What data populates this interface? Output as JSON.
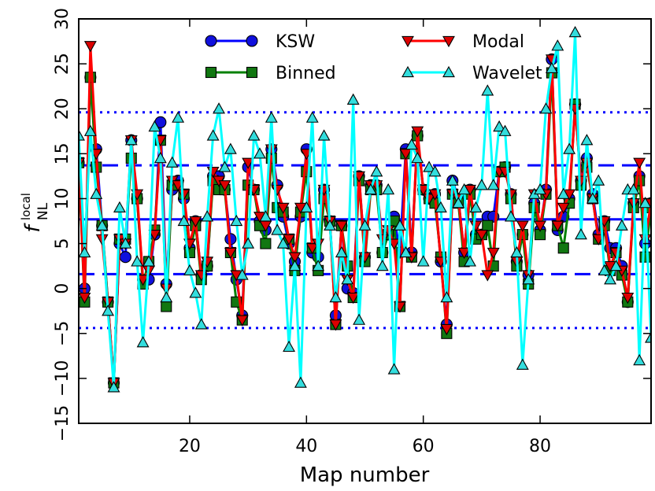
{
  "chart_data": {
    "type": "line",
    "title": "",
    "xlabel": "Map number",
    "ylabel": "f_NL^local",
    "ylabel_main": "f",
    "ylabel_sup": "local",
    "ylabel_sub": "NL",
    "xlim": [
      1,
      99
    ],
    "ylim": [
      -15,
      30
    ],
    "xticks": [
      20,
      40,
      60,
      80
    ],
    "yticks": [
      -15,
      -10,
      -5,
      0,
      5,
      10,
      15,
      20,
      25,
      30
    ],
    "ytick_labels": [
      "−15",
      "−10",
      "−5",
      "0",
      "5",
      "10",
      "15",
      "20",
      "25",
      "30"
    ],
    "legend_position": "top",
    "reference_lines": [
      {
        "name": "mean",
        "y": 7.7,
        "style": "solid",
        "color": "#0000ff"
      },
      {
        "name": "mean-plus-1sigma",
        "y": 13.7,
        "style": "dashed",
        "color": "#0000ff"
      },
      {
        "name": "mean-minus-1sigma",
        "y": 1.6,
        "style": "dashed",
        "color": "#0000ff"
      },
      {
        "name": "mean-plus-2sigma",
        "y": 19.6,
        "style": "dotted",
        "color": "#0000ff"
      },
      {
        "name": "mean-minus-2sigma",
        "y": -4.4,
        "style": "dotted",
        "color": "#0000ff"
      }
    ],
    "x": [
      1,
      2,
      3,
      4,
      5,
      6,
      7,
      8,
      9,
      10,
      11,
      12,
      13,
      14,
      15,
      16,
      17,
      18,
      19,
      20,
      21,
      22,
      23,
      24,
      25,
      26,
      27,
      28,
      29,
      30,
      31,
      32,
      33,
      34,
      35,
      36,
      37,
      38,
      39,
      40,
      41,
      42,
      43,
      44,
      45,
      46,
      47,
      48,
      49,
      50,
      51,
      52,
      53,
      54,
      55,
      56,
      57,
      58,
      59,
      60,
      61,
      62,
      63,
      64,
      65,
      66,
      67,
      68,
      69,
      70,
      71,
      72,
      73,
      74,
      75,
      76,
      77,
      78,
      79,
      80,
      81,
      82,
      83,
      84,
      85,
      86,
      87,
      88,
      89,
      90,
      91,
      92,
      93,
      94,
      95,
      96,
      97,
      98,
      99
    ],
    "series": [
      {
        "name": "KSW",
        "color": "#0000ff",
        "marker": "circle",
        "marker_color": "#1010dd",
        "values": [
          14,
          0,
          23.5,
          15.5,
          7,
          -1.5,
          -10.5,
          5,
          3.5,
          16.5,
          10,
          1,
          1,
          6,
          18.5,
          0.5,
          11,
          12,
          10,
          4.5,
          7.5,
          1.5,
          2.5,
          12.5,
          12.5,
          11,
          5.5,
          1,
          -3,
          13.5,
          11,
          7.5,
          6.5,
          15.5,
          11.5,
          8,
          5,
          3,
          8,
          15.5,
          4,
          3.5,
          11,
          7.5,
          -3,
          7,
          0,
          -0.5,
          12.5,
          3.5,
          11.5,
          11.5,
          4,
          6,
          8,
          4,
          15.5,
          4,
          17,
          11,
          10,
          10.5,
          3,
          -4,
          12,
          10,
          4,
          11,
          6,
          6,
          8,
          8,
          13,
          13.5,
          10.5,
          3,
          6,
          1.5,
          9.5,
          6.5,
          11,
          25.5,
          6.5,
          8,
          10,
          20.5,
          12,
          14.5,
          10.5,
          6,
          7.5,
          4.5,
          4.5,
          2.5,
          -1.5,
          9.5,
          12.5,
          5,
          9.5
        ]
      },
      {
        "name": "Binned",
        "color": "#008000",
        "marker": "square",
        "marker_color": "#117711",
        "values": [
          14,
          -1.5,
          23.5,
          13.5,
          7,
          -1.5,
          -10.5,
          5.5,
          5.5,
          14.5,
          10,
          0.5,
          3,
          6.5,
          16.5,
          -2,
          11.5,
          11.5,
          10.5,
          4,
          7,
          1,
          2.5,
          12,
          11,
          11,
          4,
          -1.5,
          -3.5,
          11.5,
          11,
          7,
          5,
          14.5,
          9,
          8.5,
          5.5,
          2,
          8.5,
          13,
          4.5,
          2,
          10,
          7.5,
          -4,
          7,
          2.5,
          -1,
          12,
          3,
          11,
          11,
          4,
          6,
          7.5,
          -2,
          15,
          3.5,
          17,
          11,
          10,
          9.5,
          3.5,
          -5,
          10.5,
          9.5,
          3,
          10.5,
          5.5,
          6,
          7,
          2.5,
          13,
          13.5,
          10,
          2.5,
          6,
          0.5,
          9,
          6,
          10.5,
          24,
          7,
          4.5,
          9.5,
          20.5,
          11.5,
          13.5,
          10,
          5.5,
          7,
          2,
          4,
          1.5,
          -1.5,
          9,
          12,
          3.5,
          9
        ]
      },
      {
        "name": "Modal",
        "color": "#ff0000",
        "marker": "triangle-down",
        "marker_color": "#dd0000",
        "values": [
          14,
          -1,
          27,
          15,
          5.5,
          -1.5,
          -10.5,
          5.5,
          5,
          16.5,
          10.5,
          1,
          2,
          6,
          16.5,
          0,
          12,
          11.5,
          10.5,
          5,
          7.5,
          1.5,
          3,
          13,
          12,
          11.5,
          4,
          1.5,
          -3.5,
          14,
          11,
          8,
          7,
          15.5,
          11,
          9,
          5.5,
          3.5,
          9,
          15,
          4.5,
          5,
          11,
          7.5,
          -4,
          7,
          1,
          -1,
          12.5,
          3.5,
          11.5,
          11.5,
          5.5,
          6.5,
          5,
          -2,
          15,
          3.5,
          17.5,
          11,
          10,
          10.5,
          3,
          -4.5,
          10.5,
          10,
          4,
          11,
          7,
          6,
          1.5,
          4,
          13,
          13,
          10.5,
          3,
          7,
          1.5,
          10.5,
          7,
          10.5,
          25.5,
          7,
          9,
          10.5,
          20,
          12,
          14,
          10,
          5.5,
          7.5,
          2.5,
          4,
          2,
          -1,
          9.5,
          14,
          5.5,
          9.5
        ]
      },
      {
        "name": "Wavelet",
        "color": "#00ffff",
        "marker": "triangle-up",
        "marker_color": "#33dddd",
        "values": [
          17,
          4,
          17.5,
          10.5,
          7,
          -2.5,
          -11,
          9,
          5,
          16.5,
          3,
          -6,
          3,
          18,
          14.5,
          -1,
          14,
          19,
          7.5,
          2,
          -0.5,
          -4,
          8,
          17,
          20,
          13.5,
          15.5,
          7.5,
          1.5,
          5,
          17,
          15,
          8,
          19,
          6.5,
          5,
          -6.5,
          2.5,
          -10.5,
          9,
          19,
          2.5,
          17,
          7,
          -1,
          4,
          1,
          21,
          -3.5,
          7,
          11,
          13,
          2.5,
          11,
          -9,
          7,
          4,
          16,
          14.5,
          3,
          13.5,
          13,
          9,
          -1,
          12,
          9.5,
          11,
          3,
          9,
          11.5,
          22,
          11.5,
          18,
          17.5,
          8,
          4,
          -8.5,
          1,
          10.5,
          11,
          20,
          24.5,
          27,
          10.5,
          15.5,
          28.5,
          6,
          16.5,
          10,
          12,
          2,
          1,
          2.5,
          7,
          11,
          11,
          -8,
          9.5,
          -5.5
        ]
      }
    ]
  }
}
